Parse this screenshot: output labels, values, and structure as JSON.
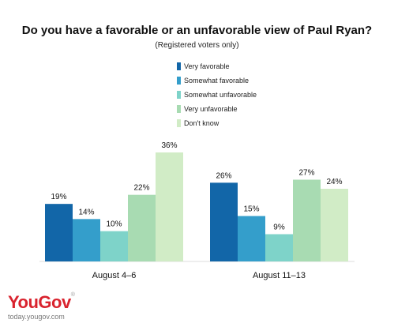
{
  "title": "Do you have a favorable or an unfavorable view of Paul Ryan?",
  "subtitle": "(Registered voters only)",
  "brand": {
    "name": "YouGov",
    "mark": "®",
    "url": "today.yougov.com"
  },
  "chart_data": {
    "type": "bar",
    "title": "Do you have a favorable or an unfavorable view of Paul Ryan?",
    "subtitle": "(Registered voters only)",
    "categories": [
      "August 4–6",
      "August 11–13"
    ],
    "series": [
      {
        "name": "Very favorable",
        "color": "#1266a8",
        "values": [
          19,
          26
        ]
      },
      {
        "name": "Somewhat favorable",
        "color": "#349ecb",
        "values": [
          14,
          15
        ]
      },
      {
        "name": "Somewhat unfavorable",
        "color": "#7ed3c9",
        "values": [
          10,
          9
        ]
      },
      {
        "name": "Very unfavorable",
        "color": "#a8dbb2",
        "values": [
          22,
          27
        ]
      },
      {
        "name": "Don't know",
        "color": "#d1ecc6",
        "values": [
          36,
          24
        ]
      }
    ],
    "value_suffix": "%",
    "ylim": [
      0,
      40
    ],
    "grid": false,
    "legend": "top-center"
  }
}
